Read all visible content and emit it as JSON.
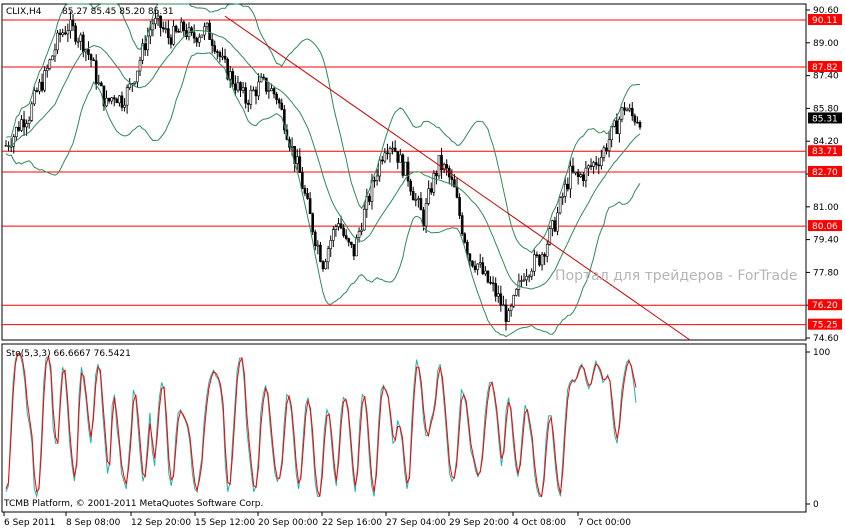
{
  "chart_data": [
    {
      "type": "candlestick",
      "symbol_header": "CLIX,H4",
      "ohlc_readout": "85.27 85.45 85.20 85.31",
      "y_ticks": [
        "90.60",
        "89.00",
        "87.40",
        "85.80",
        "84.20",
        "82.60",
        "81.00",
        "79.40",
        "77.80",
        "76.20",
        "74.60"
      ],
      "ylim": [
        74.6,
        90.6
      ],
      "horizontal_levels": [
        {
          "value": 90.11,
          "label": "90.11"
        },
        {
          "value": 87.82,
          "label": "87.82"
        },
        {
          "value": 83.71,
          "label": "83.71"
        },
        {
          "value": 82.7,
          "label": "82.70"
        },
        {
          "value": 80.06,
          "label": "80.06"
        },
        {
          "value": 76.2,
          "label": "76.20"
        },
        {
          "value": 75.25,
          "label": "75.25"
        }
      ],
      "current_price": {
        "value": 85.31,
        "label": "85.31"
      },
      "trendline": {
        "start": {
          "x": 0.0,
          "y": 90.3
        },
        "end": {
          "x": 1.0,
          "y": 74.6
        }
      },
      "watermark": "Портал для трейдеров - ForTrade",
      "close_path": [
        [
          0,
          84.0
        ],
        [
          3,
          84.5
        ],
        [
          6,
          85.2
        ],
        [
          9,
          85.5
        ],
        [
          12,
          86.6
        ],
        [
          15,
          87.3
        ],
        [
          18,
          88.4
        ],
        [
          21,
          89.4
        ],
        [
          24,
          89.8
        ],
        [
          27,
          89.5
        ],
        [
          30,
          89.0
        ],
        [
          33,
          88.2
        ],
        [
          36,
          86.9
        ],
        [
          39,
          86.0
        ],
        [
          42,
          86.5
        ],
        [
          45,
          86.2
        ],
        [
          48,
          86.8
        ],
        [
          51,
          87.8
        ],
        [
          54,
          89.0
        ],
        [
          57,
          90.0
        ],
        [
          60,
          89.8
        ],
        [
          63,
          89.3
        ],
        [
          66,
          89.4
        ],
        [
          69,
          89.7
        ],
        [
          72,
          89.2
        ],
        [
          75,
          89.5
        ],
        [
          78,
          89.6
        ],
        [
          81,
          89.0
        ],
        [
          84,
          88.0
        ],
        [
          87,
          87.4
        ],
        [
          90,
          86.8
        ],
        [
          93,
          86.2
        ],
        [
          96,
          86.6
        ],
        [
          99,
          87.0
        ],
        [
          102,
          86.8
        ],
        [
          105,
          86.4
        ],
        [
          108,
          85.2
        ],
        [
          111,
          83.8
        ],
        [
          114,
          82.6
        ],
        [
          117,
          81.0
        ],
        [
          120,
          79.5
        ],
        [
          123,
          78.3
        ],
        [
          126,
          79.4
        ],
        [
          129,
          80.4
        ],
        [
          132,
          79.2
        ],
        [
          135,
          78.8
        ],
        [
          138,
          80.3
        ],
        [
          141,
          81.5
        ],
        [
          144,
          82.8
        ],
        [
          147,
          84.0
        ],
        [
          150,
          84.1
        ],
        [
          153,
          83.2
        ],
        [
          156,
          82.5
        ],
        [
          159,
          81.3
        ],
        [
          162,
          80.4
        ],
        [
          165,
          82.0
        ],
        [
          168,
          83.1
        ],
        [
          171,
          82.7
        ],
        [
          174,
          81.8
        ],
        [
          177,
          80.0
        ],
        [
          180,
          78.5
        ],
        [
          183,
          78.2
        ],
        [
          186,
          77.5
        ],
        [
          189,
          77.0
        ],
        [
          192,
          76.3
        ],
        [
          195,
          75.5
        ],
        [
          198,
          76.7
        ],
        [
          201,
          77.8
        ],
        [
          204,
          78.2
        ],
        [
          207,
          78.5
        ],
        [
          210,
          79.3
        ],
        [
          213,
          80.2
        ],
        [
          216,
          81.5
        ],
        [
          219,
          82.6
        ],
        [
          222,
          82.4
        ],
        [
          225,
          82.7
        ],
        [
          228,
          83.1
        ],
        [
          231,
          83.5
        ],
        [
          234,
          84.3
        ],
        [
          237,
          85.0
        ],
        [
          240,
          85.9
        ],
        [
          243,
          85.4
        ],
        [
          246,
          85.31
        ]
      ],
      "bb_period_span": 246,
      "lower_indicator": {
        "type": "line",
        "header": "Sto(5,3,3) 66.6667 76.5421",
        "y_ticks": [
          "100",
          "0"
        ],
        "ylim": [
          0,
          100
        ],
        "series": [
          {
            "values": [
              8,
              12,
              48,
              80,
              95,
              99,
              98,
              92,
              80,
              60,
              52,
              40,
              10,
              5,
              12,
              42,
              80,
              96,
              97,
              85,
              50,
              40,
              40,
              72,
              90,
              85,
              65,
              40,
              25,
              15,
              30,
              72,
              90,
              80,
              68,
              50,
              40,
              60,
              85,
              92,
              85,
              60,
              40,
              20,
              28,
              65,
              72,
              50,
              38,
              20,
              15,
              10,
              30,
              50,
              75,
              70,
              50,
              30,
              15,
              20,
              40,
              60,
              35,
              25,
              50,
              70,
              80,
              75,
              50,
              20,
              12,
              20,
              45,
              60,
              62,
              58,
              55,
              50,
              40,
              20,
              10,
              8,
              20,
              30,
              55,
              70,
              80,
              85,
              88,
              84,
              82,
              75,
              60,
              25,
              8,
              15,
              40,
              65,
              88,
              96,
              96,
              80,
              50,
              35,
              20,
              8,
              12,
              30,
              60,
              72,
              78,
              70,
              50,
              35,
              20,
              15,
              18,
              30,
              55,
              72,
              70,
              60,
              40,
              20,
              10,
              20,
              45,
              65,
              70,
              60,
              40,
              15,
              5,
              5,
              25,
              50,
              62,
              58,
              40,
              22,
              12,
              35,
              60,
              70,
              68,
              60,
              40,
              20,
              8,
              25,
              55,
              72,
              70,
              55,
              30,
              12,
              5,
              25,
              55,
              75,
              78,
              74,
              70,
              55,
              40,
              42,
              55,
              50,
              40,
              20,
              10,
              20,
              55,
              80,
              95,
              88,
              75,
              55,
              45,
              45,
              55,
              60,
              70,
              88,
              92,
              78,
              60,
              40,
              20,
              15,
              18,
              30,
              55,
              75,
              72,
              65,
              50,
              35,
              30,
              22,
              18,
              22,
              35,
              58,
              72,
              80,
              80,
              70,
              58,
              40,
              25,
              38,
              62,
              70,
              60,
              40,
              25,
              18,
              30,
              50,
              65,
              60,
              50,
              40,
              20,
              10,
              5,
              5,
              20,
              45,
              58,
              58,
              40,
              22,
              10,
              5,
              30,
              55,
              75,
              80,
              82,
              80,
              84,
              90,
              92,
              88,
              80,
              76,
              80,
              88,
              94,
              90,
              86,
              80,
              82,
              85,
              80,
              60,
              45,
              40,
              55,
              75,
              85,
              93,
              95,
              90,
              80,
              66.6667
            ]
          },
          {
            "values": [
              10,
              14,
              40,
              72,
              92,
              99,
              99,
              95,
              85,
              68,
              56,
              45,
              20,
              8,
              10,
              34,
              70,
              92,
              97,
              90,
              62,
              44,
              40,
              65,
              86,
              88,
              72,
              48,
              30,
              18,
              26,
              62,
              86,
              84,
              72,
              56,
              44,
              55,
              78,
              90,
              88,
              68,
              48,
              28,
              26,
              55,
              70,
              58,
              42,
              26,
              18,
              13,
              24,
              43,
              67,
              72,
              58,
              38,
              20,
              18,
              33,
              53,
              42,
              30,
              43,
              63,
              76,
              77,
              58,
              30,
              16,
              18,
              37,
              55,
              61,
              59,
              56,
              52,
              44,
              28,
              14,
              9,
              16,
              26,
              47,
              64,
              76,
              83,
              87,
              86,
              83,
              78,
              66,
              36,
              14,
              13,
              32,
              57,
              81,
              93,
              96,
              86,
              60,
              42,
              26,
              12,
              11,
              24,
              51,
              67,
              76,
              73,
              57,
              40,
              25,
              17,
              17,
              26,
              46,
              66,
              71,
              64,
              47,
              27,
              14,
              17,
              37,
              58,
              68,
              63,
              47,
              23,
              9,
              5,
              18,
              42,
              58,
              59,
              46,
              28,
              15,
              28,
              52,
              67,
              69,
              63,
              46,
              26,
              12,
              20,
              45,
              66,
              71,
              60,
              38,
              18,
              8,
              19,
              47,
              69,
              77,
              75,
              71,
              59,
              45,
              42,
              51,
              51,
              44,
              27,
              14,
              17,
              45,
              72,
              90,
              90,
              80,
              62,
              49,
              45,
              52,
              58,
              66,
              82,
              90,
              83,
              66,
              47,
              27,
              18,
              17,
              26,
              46,
              68,
              72,
              68,
              55,
              40,
              32,
              25,
              19,
              21,
              31,
              50,
              66,
              77,
              80,
              73,
              62,
              46,
              30,
              34,
              54,
              67,
              63,
              46,
              30,
              20,
              26,
              43,
              60,
              62,
              54,
              44,
              27,
              14,
              7,
              5,
              15,
              36,
              53,
              57,
              46,
              28,
              14,
              7,
              22,
              47,
              68,
              78,
              81,
              81,
              83,
              88,
              91,
              89,
              83,
              78,
              79,
              86,
              92,
              91,
              88,
              82,
              82,
              84,
              81,
              67,
              51,
              43,
              51,
              68,
              81,
              90,
              94,
              91,
              84,
              76.5421
            ]
          }
        ]
      },
      "x_tick_labels": [
        "6 Sep 2011",
        "8 Sep 08:00",
        "12 Sep 20:00",
        "15 Sep 12:00",
        "20 Sep 00:00",
        "22 Sep 16:00",
        "27 Sep 04:00",
        "29 Sep 20:00",
        "4 Oct 08:00",
        "7 Oct 00:00"
      ],
      "footer": "TCMB Platform, © 2001-2011 MetaQuotes Software Corp."
    }
  ],
  "colors": {
    "background": "#ffffff",
    "candle": "#000000",
    "level_line": "#ff0000",
    "level_label_bg": "#ff0000",
    "trendline": "#cc0000",
    "bollinger": "#2e8b57",
    "stoch_main": "#20b2aa",
    "stoch_signal": "#ff0000",
    "watermark": "#b5b5b5",
    "axis": "#000000"
  }
}
